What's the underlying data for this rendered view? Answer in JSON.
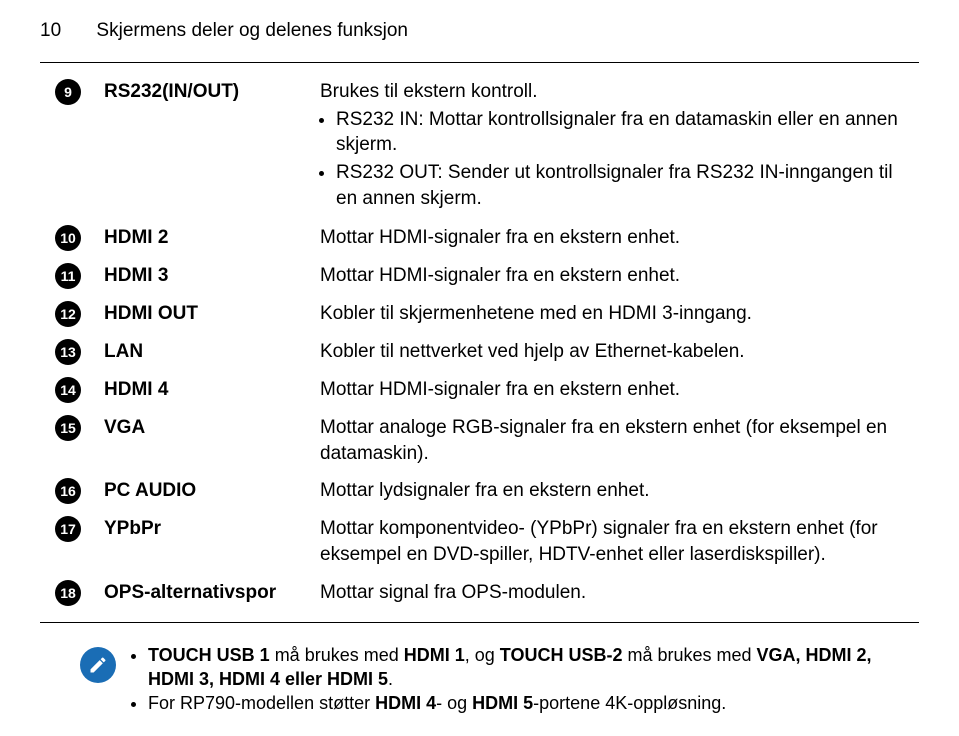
{
  "header": {
    "page_number": "10",
    "title": "Skjermens deler og delenes funksjon"
  },
  "row9": {
    "num": "9",
    "name": "RS232(IN/OUT)",
    "line1": "Brukes til ekstern kontroll.",
    "bullet1": "RS232 IN: Mottar kontrollsignaler fra en datamaskin eller en annen skjerm.",
    "bullet2": "RS232 OUT: Sender ut kontrollsignaler fra RS232 IN-inngangen til en annen skjerm."
  },
  "rows": [
    {
      "num": "10",
      "name": "HDMI 2",
      "desc": "Mottar HDMI-signaler fra en ekstern enhet."
    },
    {
      "num": "11",
      "name": "HDMI 3",
      "desc": "Mottar HDMI-signaler fra en ekstern enhet."
    },
    {
      "num": "12",
      "name": "HDMI OUT",
      "desc": "Kobler til skjermenhetene med en HDMI 3-inngang."
    },
    {
      "num": "13",
      "name": "LAN",
      "desc": "Kobler til nettverket ved hjelp av Ethernet-kabelen."
    },
    {
      "num": "14",
      "name": "HDMI 4",
      "desc": "Mottar HDMI-signaler fra en ekstern enhet."
    },
    {
      "num": "15",
      "name": "VGA",
      "desc": "Mottar analoge RGB-signaler fra en ekstern enhet (for eksempel en datamaskin)."
    },
    {
      "num": "16",
      "name": "PC AUDIO",
      "desc": "Mottar lydsignaler fra en ekstern enhet."
    },
    {
      "num": "17",
      "name": "YPbPr",
      "desc": "Mottar komponentvideo- (YPbPr) signaler fra en ekstern enhet (for eksempel en DVD-spiller, HDTV-enhet eller laserdiskspiller)."
    },
    {
      "num": "18",
      "name": "OPS-alternativspor",
      "desc": "Mottar signal fra OPS-modulen."
    }
  ],
  "note": {
    "b1_p1": "TOUCH USB 1",
    "b1_p2": " må brukes med ",
    "b1_p3": "HDMI 1",
    "b1_p4": ", og ",
    "b1_p5": "TOUCH USB-2",
    "b1_p6": " må brukes med ",
    "b1_p7": "VGA, HDMI 2, HDMI 3, HDMI 4 eller HDMI 5",
    "b1_p8": ".",
    "b2_p1": "For RP790-modellen støtter ",
    "b2_p2": "HDMI 4",
    "b2_p3": "- og ",
    "b2_p4": "HDMI 5",
    "b2_p5": "-portene 4K-oppløsning."
  },
  "colors": {
    "text": "#000000",
    "background": "#ffffff",
    "circle_bg": "#000000",
    "circle_fg": "#ffffff",
    "note_icon_bg": "#1a6db5",
    "note_icon_fg": "#ffffff",
    "rule": "#000000"
  },
  "typography": {
    "base_fontsize_pt": 14,
    "header_fontsize_pt": 14,
    "note_fontsize_pt": 13
  }
}
